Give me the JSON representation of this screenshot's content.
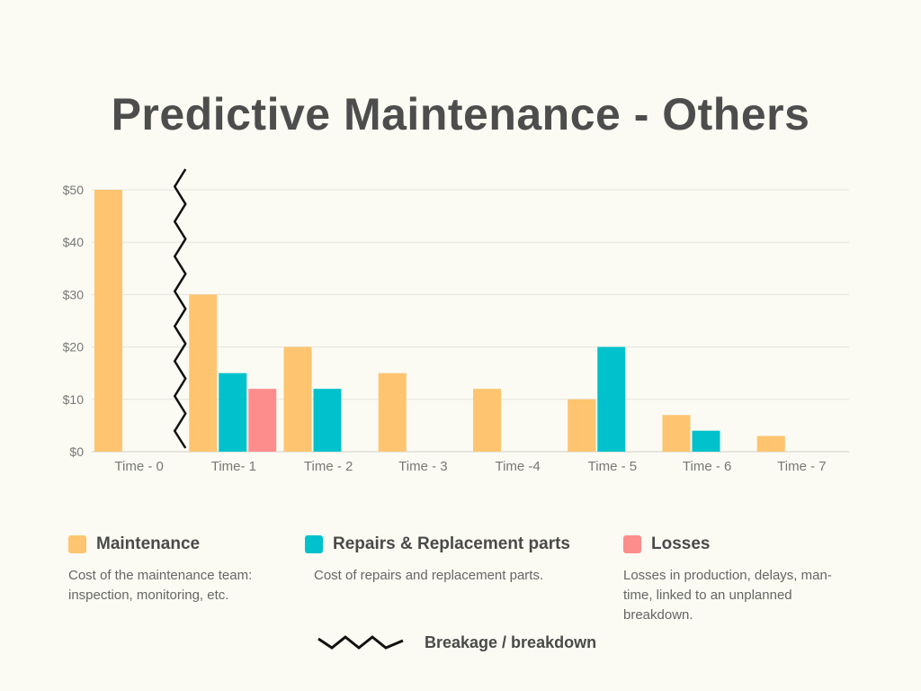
{
  "chart_data": {
    "type": "bar",
    "title": "Predictive Maintenance - Others",
    "categories": [
      "Time - 0",
      "Time- 1",
      "Time - 2",
      "Time - 3",
      "Time -4",
      "Time - 5",
      "Time - 6",
      "Time - 7"
    ],
    "series": [
      {
        "name": "Maintenance",
        "color": "#fec46f",
        "values": [
          50,
          30,
          20,
          15,
          12,
          10,
          7,
          3
        ]
      },
      {
        "name": "Repairs & Replacement parts",
        "color": "#00c1cc",
        "values": [
          null,
          15,
          12,
          null,
          null,
          20,
          4,
          null
        ]
      },
      {
        "name": "Losses",
        "color": "#fd8d8d",
        "values": [
          null,
          12,
          null,
          null,
          null,
          null,
          null,
          null
        ]
      }
    ],
    "yticks": [
      "$0",
      "$10",
      "$20",
      "$30",
      "$40",
      "$50"
    ],
    "ylim": [
      0,
      50
    ],
    "grid": true,
    "breakage_after_category": "Time - 0"
  },
  "legend": [
    {
      "label": "Maintenance",
      "color": "#fec46f",
      "description": "Cost of the maintenance team: inspection, monitoring, etc."
    },
    {
      "label": "Repairs & Replacement parts",
      "color": "#00c1cc",
      "description": "Cost of repairs and replacement parts."
    },
    {
      "label": "Losses",
      "color": "#fd8d8d",
      "description": "Losses in production, delays, man-time, linked to an unplanned breakdown."
    }
  ],
  "breakage_label": "Breakage / breakdown"
}
